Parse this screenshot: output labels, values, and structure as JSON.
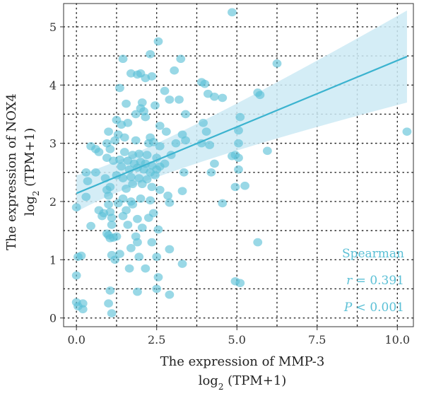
{
  "chart_data": {
    "type": "scatter",
    "xlabel": {
      "line1": "The expression of MMP-3",
      "line2_base": "log",
      "line2_sub": "2",
      "line2_rest": " (TPM+1)"
    },
    "ylabel": {
      "line1": "The expression of NOX4",
      "line2_base": "log",
      "line2_sub": "2",
      "line2_rest": " (TPM+1)"
    },
    "xlim": [
      -0.4,
      10.5
    ],
    "ylim": [
      -0.15,
      5.4
    ],
    "x_ticks": [
      0,
      2.5,
      5,
      7.5,
      10
    ],
    "x_tick_labels": [
      "0.0",
      "2.5",
      "5.0",
      "7.5",
      "10.0"
    ],
    "y_ticks": [
      0,
      1,
      2,
      3,
      4,
      5
    ],
    "y_tick_labels": [
      "0",
      "1",
      "2",
      "3",
      "4",
      "5"
    ],
    "grid": true,
    "grid_style": "dotted",
    "colors": {
      "points": "#5bc0d6",
      "line": "#3bb3cf",
      "band": "#cdeaf5",
      "grid": "#222222",
      "text": "#5bc0d6"
    },
    "regression": {
      "x": [
        0,
        10.3
      ],
      "y": [
        2.14,
        4.49
      ],
      "ci_lower": [
        1.82,
        3.7
      ],
      "ci_upper": [
        2.45,
        5.28
      ]
    },
    "annotation": {
      "method": "Spearman",
      "r_label": "r",
      "r_value": " = 0.391",
      "p_label": "P",
      "p_value": " < 0.001"
    },
    "points": [
      [
        4.85,
        5.25
      ],
      [
        2.55,
        4.75
      ],
      [
        2.3,
        4.53
      ],
      [
        3.25,
        4.45
      ],
      [
        1.45,
        4.45
      ],
      [
        6.25,
        4.37
      ],
      [
        1.7,
        4.2
      ],
      [
        2.0,
        4.2
      ],
      [
        2.15,
        4.12
      ],
      [
        2.35,
        4.15
      ],
      [
        1.9,
        4.18
      ],
      [
        3.9,
        4.05
      ],
      [
        4.0,
        4.02
      ],
      [
        3.05,
        4.25
      ],
      [
        1.35,
        3.95
      ],
      [
        2.75,
        3.9
      ],
      [
        4.1,
        3.85
      ],
      [
        4.3,
        3.8
      ],
      [
        4.55,
        3.78
      ],
      [
        5.65,
        3.87
      ],
      [
        5.72,
        3.83
      ],
      [
        2.05,
        3.7
      ],
      [
        1.55,
        3.68
      ],
      [
        2.9,
        3.75
      ],
      [
        3.2,
        3.75
      ],
      [
        2.0,
        3.6
      ],
      [
        2.1,
        3.55
      ],
      [
        1.85,
        3.5
      ],
      [
        2.45,
        3.65
      ],
      [
        3.4,
        3.5
      ],
      [
        5.1,
        3.45
      ],
      [
        2.15,
        3.45
      ],
      [
        1.25,
        3.4
      ],
      [
        1.6,
        3.35
      ],
      [
        2.6,
        3.3
      ],
      [
        1.4,
        3.32
      ],
      [
        3.95,
        3.35
      ],
      [
        4.05,
        3.2
      ],
      [
        5.05,
        3.22
      ],
      [
        1.0,
        3.2
      ],
      [
        1.3,
        3.15
      ],
      [
        1.5,
        3.1
      ],
      [
        2.3,
        3.1
      ],
      [
        2.8,
        3.2
      ],
      [
        3.3,
        3.15
      ],
      [
        10.3,
        3.2
      ],
      [
        0.95,
        3.0
      ],
      [
        1.2,
        3.05
      ],
      [
        1.85,
        3.05
      ],
      [
        2.25,
        3.0
      ],
      [
        2.4,
        3.02
      ],
      [
        2.6,
        2.95
      ],
      [
        3.1,
        3.0
      ],
      [
        3.4,
        3.05
      ],
      [
        3.9,
        3.0
      ],
      [
        4.15,
        2.97
      ],
      [
        5.05,
        3.0
      ],
      [
        0.45,
        2.95
      ],
      [
        0.6,
        2.9
      ],
      [
        0.7,
        2.85
      ],
      [
        1.05,
        2.9
      ],
      [
        1.5,
        2.85
      ],
      [
        1.75,
        2.8
      ],
      [
        1.95,
        2.82
      ],
      [
        2.2,
        2.8
      ],
      [
        2.5,
        2.75
      ],
      [
        2.95,
        2.8
      ],
      [
        4.3,
        2.65
      ],
      [
        4.95,
        2.8
      ],
      [
        5.05,
        2.75
      ],
      [
        5.95,
        2.87
      ],
      [
        4.85,
        2.78
      ],
      [
        0.95,
        2.75
      ],
      [
        1.15,
        2.7
      ],
      [
        1.35,
        2.72
      ],
      [
        1.6,
        2.7
      ],
      [
        1.8,
        2.65
      ],
      [
        2.0,
        2.68
      ],
      [
        2.15,
        2.65
      ],
      [
        2.35,
        2.62
      ],
      [
        2.6,
        2.6
      ],
      [
        2.75,
        2.65
      ],
      [
        1.4,
        2.6
      ],
      [
        1.65,
        2.55
      ],
      [
        1.9,
        2.58
      ],
      [
        2.1,
        2.55
      ],
      [
        2.3,
        2.5
      ],
      [
        2.5,
        2.55
      ],
      [
        3.35,
        2.5
      ],
      [
        4.2,
        2.5
      ],
      [
        5.05,
        2.55
      ],
      [
        0.3,
        2.5
      ],
      [
        0.6,
        2.5
      ],
      [
        1.25,
        2.45
      ],
      [
        1.45,
        2.4
      ],
      [
        1.7,
        2.42
      ],
      [
        1.95,
        2.4
      ],
      [
        2.2,
        2.38
      ],
      [
        2.45,
        2.45
      ],
      [
        0.9,
        2.4
      ],
      [
        0.35,
        2.35
      ],
      [
        1.75,
        2.3
      ],
      [
        2.05,
        2.3
      ],
      [
        2.35,
        2.25
      ],
      [
        4.95,
        2.25
      ],
      [
        5.25,
        2.27
      ],
      [
        1.05,
        2.25
      ],
      [
        1.55,
        2.22
      ],
      [
        0.95,
        2.2
      ],
      [
        2.6,
        2.2
      ],
      [
        3.3,
        2.18
      ],
      [
        0.3,
        2.08
      ],
      [
        1.0,
        2.1
      ],
      [
        1.45,
        2.05
      ],
      [
        1.7,
        2.0
      ],
      [
        2.0,
        2.05
      ],
      [
        2.3,
        2.02
      ],
      [
        2.85,
        2.1
      ],
      [
        0.0,
        1.9
      ],
      [
        1.0,
        1.95
      ],
      [
        1.3,
        1.97
      ],
      [
        1.75,
        1.95
      ],
      [
        2.9,
        1.98
      ],
      [
        4.55,
        1.97
      ],
      [
        0.7,
        1.85
      ],
      [
        0.85,
        1.8
      ],
      [
        1.05,
        1.82
      ],
      [
        1.55,
        1.85
      ],
      [
        2.4,
        1.8
      ],
      [
        0.8,
        1.75
      ],
      [
        1.1,
        1.72
      ],
      [
        1.45,
        1.75
      ],
      [
        1.9,
        1.7
      ],
      [
        2.25,
        1.72
      ],
      [
        0.45,
        1.58
      ],
      [
        1.1,
        1.6
      ],
      [
        1.6,
        1.6
      ],
      [
        2.05,
        1.55
      ],
      [
        2.55,
        1.52
      ],
      [
        0.95,
        1.45
      ],
      [
        1.0,
        1.42
      ],
      [
        1.25,
        1.4
      ],
      [
        1.05,
        1.37
      ],
      [
        1.15,
        1.38
      ],
      [
        1.85,
        1.4
      ],
      [
        1.9,
        1.3
      ],
      [
        2.35,
        1.3
      ],
      [
        5.65,
        1.3
      ],
      [
        1.7,
        1.2
      ],
      [
        2.9,
        1.18
      ],
      [
        0.15,
        1.07
      ],
      [
        0.05,
        1.05
      ],
      [
        1.1,
        1.08
      ],
      [
        1.35,
        1.1
      ],
      [
        1.2,
        1.0
      ],
      [
        1.95,
        1.05
      ],
      [
        2.5,
        1.05
      ],
      [
        1.65,
        0.85
      ],
      [
        2.15,
        0.85
      ],
      [
        3.3,
        0.93
      ],
      [
        0.0,
        0.73
      ],
      [
        2.55,
        0.7
      ],
      [
        4.95,
        0.63
      ],
      [
        5.1,
        0.6
      ],
      [
        1.05,
        0.47
      ],
      [
        1.9,
        0.45
      ],
      [
        2.5,
        0.5
      ],
      [
        2.9,
        0.4
      ],
      [
        0.0,
        0.27
      ],
      [
        0.05,
        0.2
      ],
      [
        0.2,
        0.25
      ],
      [
        1.0,
        0.25
      ],
      [
        0.2,
        0.15
      ],
      [
        1.1,
        0.08
      ]
    ]
  }
}
